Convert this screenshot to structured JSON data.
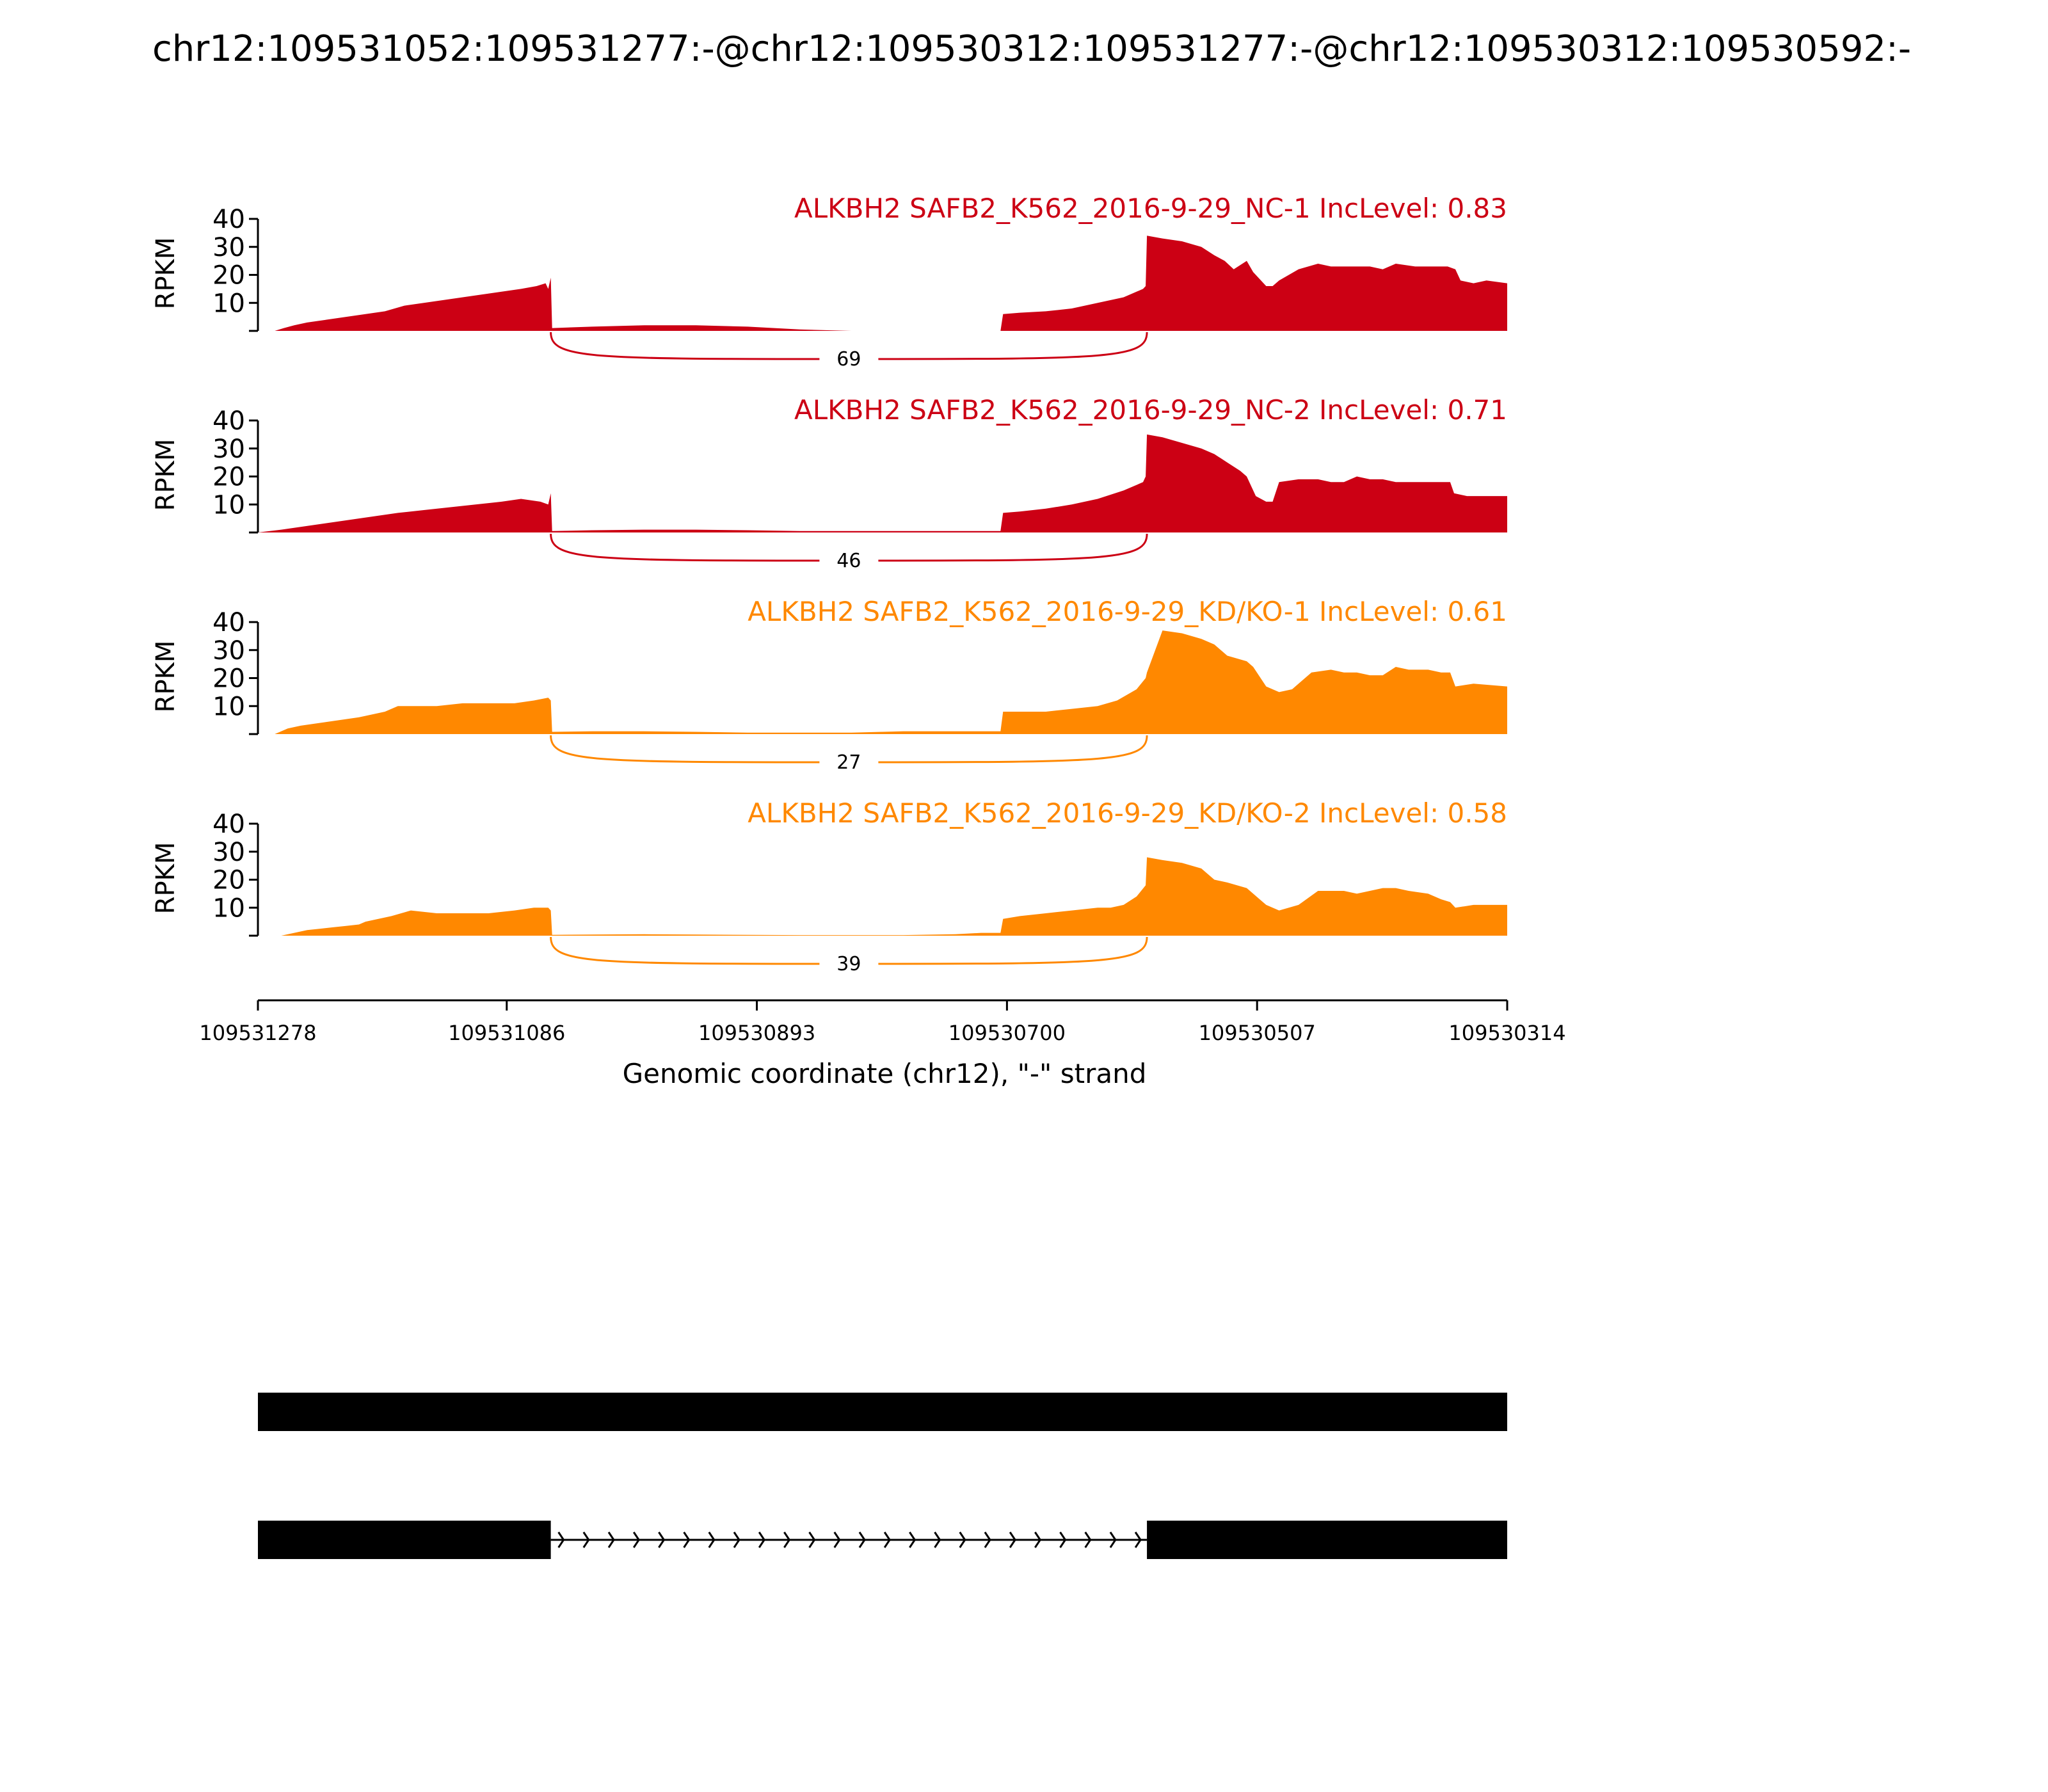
{
  "title": "chr12:109531052:109531277:-@chr12:109530312:109531277:-@chr12:109530312:109530592:-",
  "colors": {
    "nc": "#cc0014",
    "kd": "#ff8800",
    "axis": "#000000",
    "gene": "#000000"
  },
  "chart_data": {
    "type": "area",
    "xlabel": "Genomic coordinate (chr12), \"-\" strand",
    "ylabel": "RPKM",
    "xlim": [
      109531278,
      109530314
    ],
    "ylim": [
      0,
      40
    ],
    "x_ticks": [
      "109531278",
      "109531086",
      "109530893",
      "109530700",
      "109530507",
      "109530314"
    ],
    "y_ticks": [
      "10",
      "20",
      "30",
      "40"
    ],
    "regions": {
      "upstream_exon": [
        109531278,
        109531052
      ],
      "intron": [
        109531052,
        109530592
      ],
      "downstream_exon": [
        109530592,
        109530314
      ]
    },
    "series": [
      {
        "name": "ALKBH2 SAFB2_K562_2016-9-29_NC-1 IncLevel: 0.83",
        "group": "nc",
        "junction_count": "69",
        "x": [
          109531278,
          109531265,
          109531258,
          109531250,
          109531240,
          109531225,
          109531210,
          109531195,
          109531180,
          109531165,
          109531150,
          109531135,
          109531120,
          109531105,
          109531090,
          109531075,
          109531063,
          109531056,
          109531054,
          109531052,
          109531051,
          109531020,
          109530980,
          109530940,
          109530900,
          109530860,
          109530820,
          109530780,
          109530740,
          109530705,
          109530703,
          109530690,
          109530670,
          109530650,
          109530630,
          109530610,
          109530595,
          109530593,
          109530592,
          109530580,
          109530565,
          109530550,
          109530540,
          109530532,
          109530525,
          109530515,
          109530510,
          109530500,
          109530495,
          109530490,
          109530475,
          109530460,
          109530450,
          109530440,
          109530430,
          109530420,
          109530410,
          109530400,
          109530385,
          109530370,
          109530360,
          109530354,
          109530350,
          109530340,
          109530330,
          109530314
        ],
        "y": [
          0,
          0,
          1,
          2,
          3,
          4,
          5,
          6,
          7,
          9,
          10,
          11,
          12,
          13,
          14,
          15,
          16,
          17,
          15,
          19,
          1,
          1.5,
          2,
          2,
          1.5,
          0.5,
          0,
          0,
          0,
          0,
          6,
          6.5,
          7,
          8,
          10,
          12,
          15,
          16,
          34,
          33,
          32,
          30,
          27,
          25,
          22,
          25,
          21,
          16,
          16,
          18,
          22,
          24,
          23,
          23,
          23,
          23,
          22,
          24,
          23,
          23,
          23,
          22,
          18,
          17,
          18,
          17
        ]
      },
      {
        "name": "ALKBH2 SAFB2_K562_2016-9-29_NC-2 IncLevel: 0.71",
        "group": "nc",
        "junction_count": "46",
        "x": [
          109531278,
          109531260,
          109531245,
          109531230,
          109531215,
          109531200,
          109531185,
          109531170,
          109531150,
          109531130,
          109531110,
          109531090,
          109531075,
          109531060,
          109531054,
          109531052,
          109531051,
          109531020,
          109530980,
          109530940,
          109530900,
          109530860,
          109530820,
          109530780,
          109530740,
          109530705,
          109530703,
          109530690,
          109530670,
          109530650,
          109530630,
          109530610,
          109530595,
          109530593,
          109530592,
          109530580,
          109530565,
          109530550,
          109530540,
          109530530,
          109530520,
          109530515,
          109530508,
          109530500,
          109530495,
          109530490,
          109530475,
          109530460,
          109530450,
          109530440,
          109530430,
          109530420,
          109530410,
          109530400,
          109530385,
          109530375,
          109530365,
          109530358,
          109530355,
          109530345,
          109530314
        ],
        "y": [
          0,
          1,
          2,
          3,
          4,
          5,
          6,
          7,
          8,
          9,
          10,
          11,
          12,
          11,
          10,
          14,
          0.5,
          0.8,
          1,
          1,
          0.8,
          0.5,
          0.5,
          0.5,
          0.5,
          0.5,
          7,
          7.5,
          8.5,
          10,
          12,
          15,
          18,
          20,
          35,
          34,
          32,
          30,
          28,
          25,
          22,
          20,
          13,
          11,
          11,
          18,
          19,
          19,
          18,
          18,
          20,
          19,
          19,
          18,
          18,
          18,
          18,
          18,
          14,
          13,
          13
        ]
      },
      {
        "name": "ALKBH2 SAFB2_K562_2016-9-29_KD/KO-1 IncLevel: 0.61",
        "group": "kd",
        "junction_count": "27",
        "x": [
          109531278,
          109531265,
          109531255,
          109531245,
          109531230,
          109531215,
          109531200,
          109531190,
          109531180,
          109531170,
          109531160,
          109531150,
          109531140,
          109531120,
          109531100,
          109531080,
          109531065,
          109531054,
          109531052,
          109531051,
          109531020,
          109530980,
          109530940,
          109530900,
          109530860,
          109530820,
          109530780,
          109530740,
          109530705,
          109530703,
          109530690,
          109530670,
          109530650,
          109530630,
          109530615,
          109530600,
          109530593,
          109530592,
          109530580,
          109530565,
          109530550,
          109530540,
          109530530,
          109530515,
          109530510,
          109530500,
          109530490,
          109530480,
          109530465,
          109530450,
          109530440,
          109530430,
          109530420,
          109530410,
          109530400,
          109530390,
          109530375,
          109530365,
          109530358,
          109530354,
          109530340,
          109530314
        ],
        "y": [
          0,
          0,
          2,
          3,
          4,
          5,
          6,
          7,
          8,
          10,
          10,
          10,
          10,
          11,
          11,
          11,
          12,
          13,
          12,
          0.8,
          1,
          1,
          0.8,
          0.5,
          0.5,
          0.5,
          1,
          1,
          1,
          8,
          8,
          8,
          9,
          10,
          12,
          16,
          20,
          22,
          37,
          36,
          34,
          32,
          28,
          26,
          24,
          17,
          15,
          16,
          22,
          23,
          22,
          22,
          21,
          21,
          24,
          23,
          23,
          22,
          22,
          17,
          18,
          17
        ]
      },
      {
        "name": "ALKBH2 SAFB2_K562_2016-9-29_KD/KO-2 IncLevel: 0.58",
        "group": "kd",
        "junction_count": "39",
        "x": [
          109531278,
          109531260,
          109531250,
          109531240,
          109531230,
          109531220,
          109531210,
          109531200,
          109531195,
          109531185,
          109531175,
          109531160,
          109531140,
          109531120,
          109531100,
          109531080,
          109531065,
          109531054,
          109531052,
          109531051,
          109531020,
          109530980,
          109530940,
          109530900,
          109530860,
          109530820,
          109530780,
          109530740,
          109530720,
          109530705,
          109530703,
          109530690,
          109530670,
          109530650,
          109530630,
          109530620,
          109530610,
          109530600,
          109530593,
          109530592,
          109530580,
          109530565,
          109530550,
          109530540,
          109530530,
          109530515,
          109530505,
          109530500,
          109530490,
          109530475,
          109530460,
          109530450,
          109530440,
          109530430,
          109530420,
          109530410,
          109530400,
          109530390,
          109530375,
          109530365,
          109530358,
          109530354,
          109530340,
          109530314
        ],
        "y": [
          0,
          0,
          1,
          2,
          2.5,
          3,
          3.5,
          4,
          5,
          6,
          7,
          9,
          8,
          8,
          8,
          9,
          10,
          10,
          9,
          0.3,
          0.4,
          0.5,
          0.4,
          0.3,
          0.2,
          0.2,
          0.2,
          0.5,
          1,
          1,
          6,
          7,
          8,
          9,
          10,
          10,
          11,
          14,
          18,
          28,
          27,
          26,
          24,
          20,
          19,
          17,
          13,
          11,
          9,
          11,
          16,
          16,
          16,
          15,
          16,
          17,
          17,
          16,
          15,
          13,
          12,
          10,
          11,
          11
        ]
      }
    ]
  }
}
